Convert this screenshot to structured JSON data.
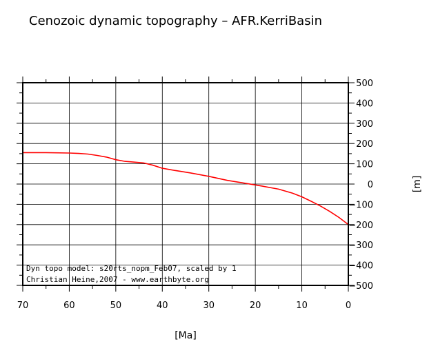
{
  "chart_data": {
    "type": "line",
    "title": "Cenozoic dynamic topography – AFR.KerriBasin",
    "xlabel": "[Ma]",
    "ylabel": "[m]",
    "xlim": [
      70,
      0
    ],
    "ylim": [
      -500,
      500
    ],
    "x_ticks": [
      "70",
      "60",
      "50",
      "40",
      "30",
      "20",
      "10",
      "0"
    ],
    "y_ticks": [
      "500",
      "400",
      "300",
      "200",
      "100",
      "0",
      "−100",
      "−200",
      "−300",
      "−400",
      "−500"
    ],
    "grid": true,
    "series": [
      {
        "color": "#ff0000",
        "x": [
          70,
          65,
          60,
          58,
          56,
          54,
          52,
          50,
          48,
          46,
          44,
          42,
          40,
          37,
          34,
          30,
          26,
          22,
          19,
          15,
          12,
          10,
          8,
          6,
          4,
          2,
          0
        ],
        "y": [
          155,
          155,
          153,
          151,
          148,
          141,
          133,
          120,
          112,
          108,
          104,
          93,
          78,
          66,
          55,
          38,
          18,
          3,
          -8,
          -25,
          -45,
          -63,
          -85,
          -108,
          -135,
          -165,
          -200
        ]
      }
    ],
    "annotations": [
      "Dyn topo model: s20rts_nopm_Feb07, scaled by 1",
      "Christian Heine,2007 - www.earthbyte.org"
    ]
  }
}
